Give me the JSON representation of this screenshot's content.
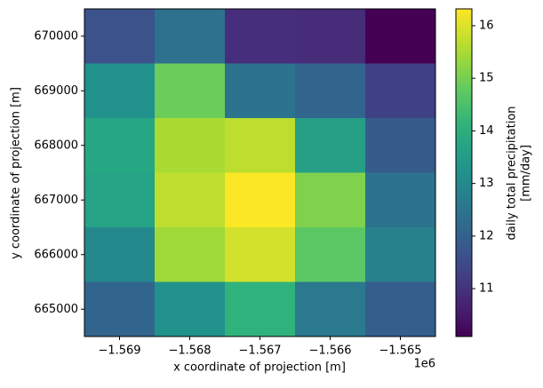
{
  "chart_data": {
    "type": "heatmap",
    "xlabel": "x coordinate of projection [m]",
    "ylabel": "y coordinate of projection [m]",
    "x_offset_label": "1e6",
    "x": [
      -1569000,
      -1568000,
      -1567000,
      -1566000,
      -1565000
    ],
    "y": [
      670000,
      669000,
      668000,
      667000,
      666000,
      665000
    ],
    "values": [
      [
        11.65,
        12.4,
        10.9,
        10.85,
        10.09
      ],
      [
        13.2,
        14.9,
        12.45,
        12.1,
        11.3
      ],
      [
        13.8,
        15.5,
        15.7,
        13.6,
        11.9
      ],
      [
        13.7,
        15.7,
        16.3,
        15.1,
        12.45
      ],
      [
        13.0,
        15.4,
        15.9,
        14.7,
        12.8
      ],
      [
        12.1,
        13.2,
        14.1,
        12.6,
        11.95
      ]
    ],
    "colormap": "viridis",
    "xlim": [
      -1569500,
      -1564500
    ],
    "ylim": [
      664500,
      670500
    ],
    "xticks": [
      {
        "value": -1569000,
        "label": "−1.569"
      },
      {
        "value": -1568000,
        "label": "−1.568"
      },
      {
        "value": -1567000,
        "label": "−1.567"
      },
      {
        "value": -1566000,
        "label": "−1.566"
      },
      {
        "value": -1565000,
        "label": "−1.565"
      }
    ],
    "yticks": [
      665000,
      666000,
      667000,
      668000,
      669000,
      670000
    ],
    "colorbar_label": [
      "daily total precipitation",
      "[mm/day]"
    ],
    "clim": [
      10.09,
      16.32
    ],
    "cticks": [
      11,
      12,
      13,
      14,
      15,
      16
    ]
  }
}
